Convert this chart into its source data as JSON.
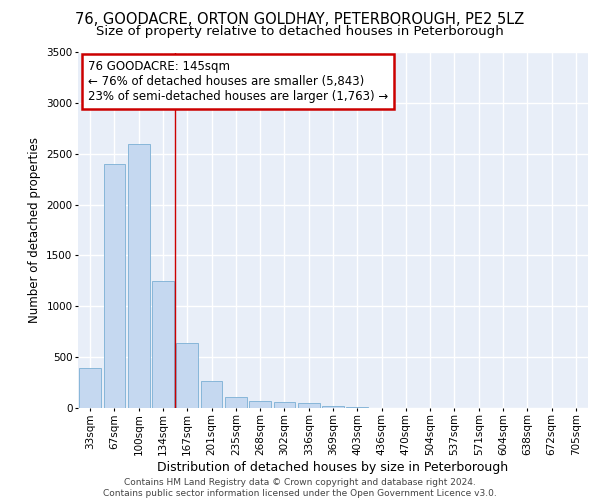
{
  "title": "76, GOODACRE, ORTON GOLDHAY, PETERBOROUGH, PE2 5LZ",
  "subtitle": "Size of property relative to detached houses in Peterborough",
  "xlabel": "Distribution of detached houses by size in Peterborough",
  "ylabel": "Number of detached properties",
  "categories": [
    "33sqm",
    "67sqm",
    "100sqm",
    "134sqm",
    "167sqm",
    "201sqm",
    "235sqm",
    "268sqm",
    "302sqm",
    "336sqm",
    "369sqm",
    "403sqm",
    "436sqm",
    "470sqm",
    "504sqm",
    "537sqm",
    "571sqm",
    "604sqm",
    "638sqm",
    "672sqm",
    "705sqm"
  ],
  "values": [
    390,
    2400,
    2600,
    1250,
    640,
    260,
    100,
    60,
    50,
    40,
    10,
    5,
    0,
    0,
    0,
    0,
    0,
    0,
    0,
    0,
    0
  ],
  "bar_color": "#c5d8f0",
  "bar_edge_color": "#7bafd4",
  "red_line_x": 3.5,
  "annotation_line1": "76 GOODACRE: 145sqm",
  "annotation_line2": "← 76% of detached houses are smaller (5,843)",
  "annotation_line3": "23% of semi-detached houses are larger (1,763) →",
  "annotation_box_color": "#ffffff",
  "annotation_box_edge_color": "#cc0000",
  "ylim": [
    0,
    3500
  ],
  "yticks": [
    0,
    500,
    1000,
    1500,
    2000,
    2500,
    3000,
    3500
  ],
  "background_color": "#e8eef8",
  "grid_color": "#ffffff",
  "footer_line1": "Contains HM Land Registry data © Crown copyright and database right 2024.",
  "footer_line2": "Contains public sector information licensed under the Open Government Licence v3.0.",
  "title_fontsize": 10.5,
  "subtitle_fontsize": 9.5,
  "xlabel_fontsize": 9,
  "ylabel_fontsize": 8.5,
  "tick_fontsize": 7.5,
  "annotation_fontsize": 8.5,
  "footer_fontsize": 6.5
}
